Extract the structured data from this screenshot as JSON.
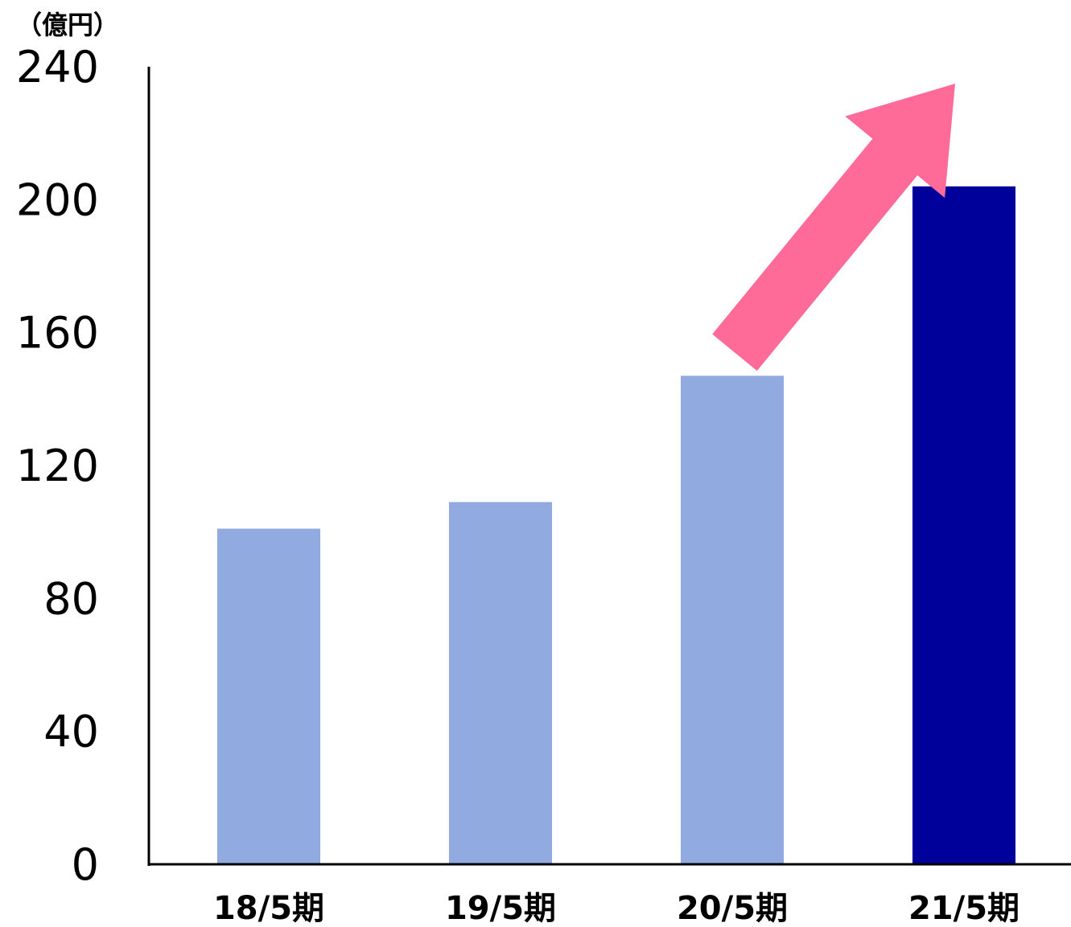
{
  "chart_data": {
    "type": "bar",
    "unit_label": "（億円）",
    "categories": [
      "18/5期",
      "19/5期",
      "20/5期",
      "21/5期"
    ],
    "values": [
      101,
      109,
      147,
      204
    ],
    "highlight_index": 3,
    "ylim": [
      0,
      240
    ],
    "yticks": [
      0,
      40,
      80,
      120,
      160,
      200,
      240
    ],
    "grid": false,
    "colors": {
      "bar": "#91ABE0",
      "highlight": "#00009A",
      "arrow": "#FF6B99",
      "axis": "#000000"
    },
    "annotation": {
      "type": "arrow",
      "from_index": 2,
      "to_index": 3,
      "color": "#FF6B99"
    }
  }
}
